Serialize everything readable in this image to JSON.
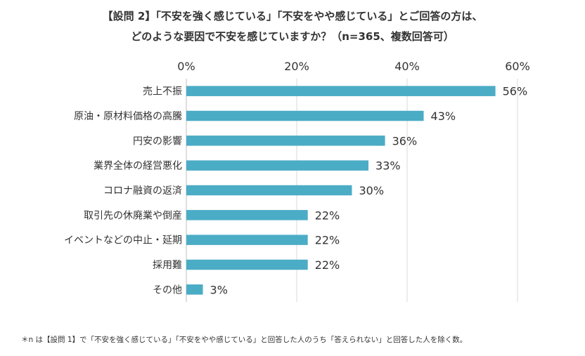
{
  "chart_data": {
    "type": "bar",
    "orientation": "horizontal",
    "title": "【設問 2】「不安を強く感じている」「不安をやや感じている」とご回答の方は、",
    "subtitle": "どのような要因で不安を感じていますか？（n=365、複数回答可）",
    "categories": [
      "売上不振",
      "原油・原材料価格の高騰",
      "円安の影響",
      "業界全体の経営悪化",
      "コロナ融資の返済",
      "取引先の休廃業や倒産",
      "イベントなどの中止・延期",
      "採用難",
      "その他"
    ],
    "values": [
      56,
      43,
      36,
      33,
      30,
      22,
      22,
      22,
      3
    ],
    "value_labels": [
      "56%",
      "43%",
      "36%",
      "33%",
      "30%",
      "22%",
      "22%",
      "22%",
      "3%"
    ],
    "xlim": [
      0,
      60
    ],
    "x_ticks": [
      0,
      20,
      40,
      60
    ],
    "x_tick_labels": [
      "0%",
      "20%",
      "40%",
      "60%"
    ],
    "x_axis_position": "top",
    "grid": true,
    "legend": "none",
    "bar_color": "#4BACC6",
    "grid_color": "#D9D9D9",
    "footnote": "＊n は【設問 1】で「不安を強く感じている」「不安をやや感じている」と回答した人のうち「答えられない」と回答した人を除く数。"
  }
}
